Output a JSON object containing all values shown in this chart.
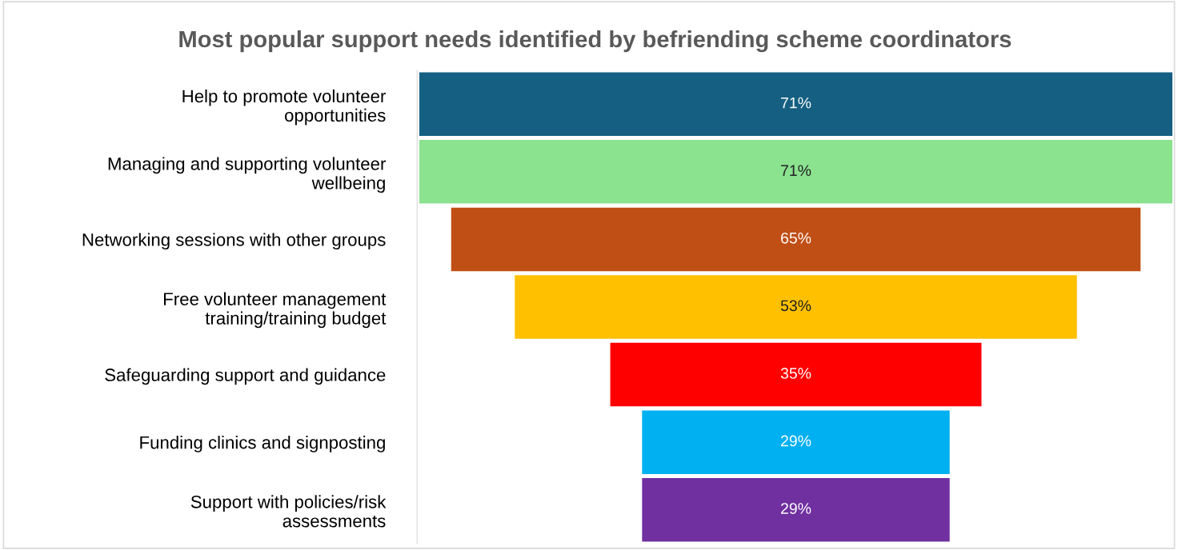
{
  "chart_data": {
    "type": "other",
    "title": "Most popular support needs identified by befriending scheme coordinators",
    "categories": [
      "Help to promote volunteer\nopportunities",
      "Managing and supporting volunteer\nwellbeing",
      "Networking sessions with other groups",
      "Free volunteer management\ntraining/training budget",
      "Safeguarding support and guidance",
      "Funding clinics and signposting",
      "Support with policies/risk\nassessments"
    ],
    "values": [
      71,
      71,
      65,
      53,
      35,
      29,
      29
    ],
    "value_labels": [
      "71%",
      "71%",
      "65%",
      "53%",
      "35%",
      "29%",
      "29%"
    ],
    "colors": [
      "#156082",
      "#8be28f",
      "#c04f15",
      "#ffc000",
      "#ff0000",
      "#00b0f0",
      "#7030a0"
    ]
  }
}
